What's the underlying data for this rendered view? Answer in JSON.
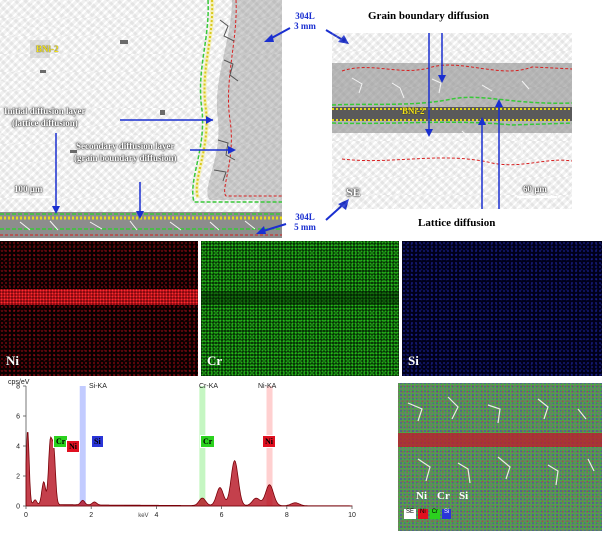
{
  "sem_left": {
    "label_bni2": "BNi-2",
    "label_initial_1": "Initial diffusion layer",
    "label_initial_2": "(lattice diffusion)",
    "label_secondary_1": "Secondary diffusion layer",
    "label_secondary_2": "(grain boundary diffusion)",
    "scale": "100 μm"
  },
  "callouts": {
    "top_1": "304L",
    "top_2": "3 mm",
    "bottom_1": "304L",
    "bottom_2": "5 mm"
  },
  "sem_right": {
    "title": "Grain boundary diffusion",
    "label_bni2": "BNi-2",
    "mode": "SE",
    "scale": "60 μm",
    "bottom_label": "Lattice diffusion"
  },
  "maps": {
    "ni": {
      "label": "Ni",
      "color": "#e01020"
    },
    "cr": {
      "label": "Cr",
      "color": "#2bd21e"
    },
    "si": {
      "label": "Si",
      "color": "#2a35d8"
    }
  },
  "spectrum": {
    "ylabel": "cps/eV",
    "y_ticks": [
      "0",
      "2",
      "4",
      "6",
      "8"
    ],
    "x_ticks": [
      "0",
      "2",
      "4",
      "6",
      "8",
      "10"
    ],
    "x_unit": "keV",
    "peak_names": {
      "si": "Si-KA",
      "cr": "Cr-KA",
      "ni": "Ni-KA"
    },
    "tags": {
      "cr1": "Cr",
      "ni1": "Ni",
      "si": "Si",
      "cr2": "Cr",
      "ni2": "Ni"
    }
  },
  "overlay": {
    "legend_ni": "Ni",
    "legend_cr": "Cr",
    "legend_si": "Si",
    "small_se": "SE",
    "small_ni": "Ni",
    "small_cr": "Cr",
    "small_si": "Si"
  },
  "chart_data": {
    "type": "line",
    "title": "",
    "xlabel": "keV",
    "ylabel": "cps/eV",
    "xlim": [
      0,
      10
    ],
    "ylim": [
      0,
      8
    ],
    "series": [
      {
        "name": "",
        "x": [
          0.05,
          0.28,
          0.52,
          0.57,
          0.74,
          0.85,
          1.74,
          2.1,
          5.41,
          5.95,
          6.4,
          7.06,
          7.47,
          8.26
        ],
        "y": [
          4.9,
          0.3,
          0.9,
          0.8,
          3.9,
          3.6,
          0.3,
          0.2,
          0.5,
          1.2,
          3.0,
          0.5,
          1.4,
          0.2
        ]
      }
    ],
    "markers": [
      {
        "name": "Si-KA",
        "x": 1.74
      },
      {
        "name": "Cr-KA",
        "x": 5.41
      },
      {
        "name": "Ni-KA",
        "x": 7.47
      }
    ]
  }
}
